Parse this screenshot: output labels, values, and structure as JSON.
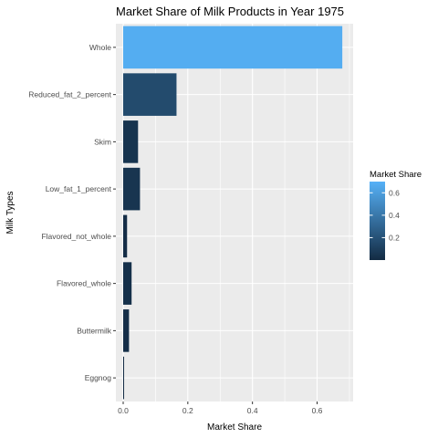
{
  "chart_data": {
    "type": "bar",
    "orientation": "horizontal",
    "title": "Market Share of Milk Products in Year 1975",
    "xlabel": "Market Share",
    "ylabel": "Milk Types",
    "categories": [
      "Whole",
      "Reduced_fat_2_percent",
      "Skim",
      "Low_fat_1_percent",
      "Flavored_not_whole",
      "Flavored_whole",
      "Buttermilk",
      "Eggnog"
    ],
    "values": [
      0.678,
      0.165,
      0.046,
      0.052,
      0.012,
      0.026,
      0.018,
      0.002
    ],
    "xlim": [
      0,
      0.7
    ],
    "xticks": [
      0.0,
      0.2,
      0.4,
      0.6
    ],
    "xtick_labels": [
      "0.0",
      "0.2",
      "0.4",
      "0.6"
    ],
    "grid": true,
    "legend": {
      "title": "Market Share",
      "position": "right",
      "type": "colorbar",
      "breaks": [
        0.2,
        0.4,
        0.6
      ],
      "break_labels": [
        "0.2",
        "0.4",
        "0.6"
      ],
      "range": [
        0.0,
        0.7
      ],
      "low_color": "#132B43",
      "high_color": "#56B1F7"
    },
    "panel_background": "#ebebeb",
    "grid_color": "#ffffff"
  }
}
